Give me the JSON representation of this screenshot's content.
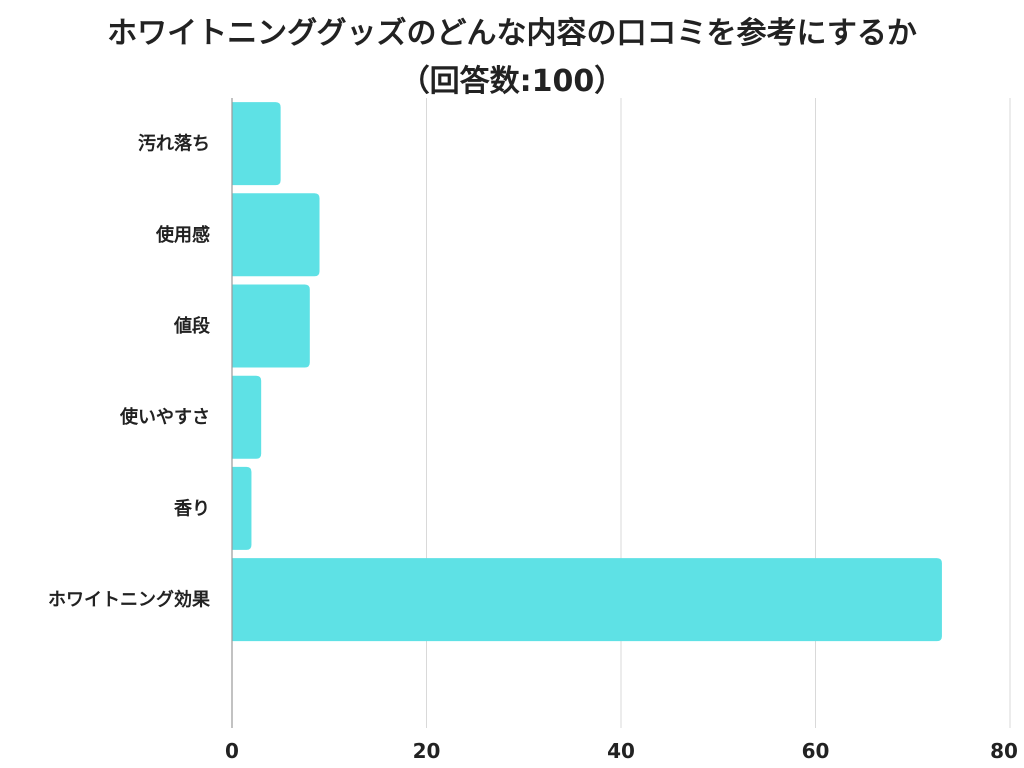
{
  "chart_data": {
    "type": "bar",
    "orientation": "horizontal",
    "title": "ホワイトニンググッズのどんな内容の口コミを参考にするか",
    "subtitle": "（回答数:100）",
    "categories": [
      "汚れ落ち",
      "使用感",
      "値段",
      "使いやすさ",
      "香り",
      "ホワイトニング効果"
    ],
    "values": [
      5,
      9,
      8,
      3,
      2,
      73
    ],
    "xlim": [
      0,
      80
    ],
    "xticks": [
      0,
      20,
      40,
      60,
      80
    ],
    "xtick_labels": [
      "0",
      "20",
      "40",
      "60",
      "80"
    ],
    "grid": "vertical",
    "bar_color": "#5ee1e5",
    "grid_color": "#d9d9d9",
    "axis_color": "#9a9a9a"
  }
}
